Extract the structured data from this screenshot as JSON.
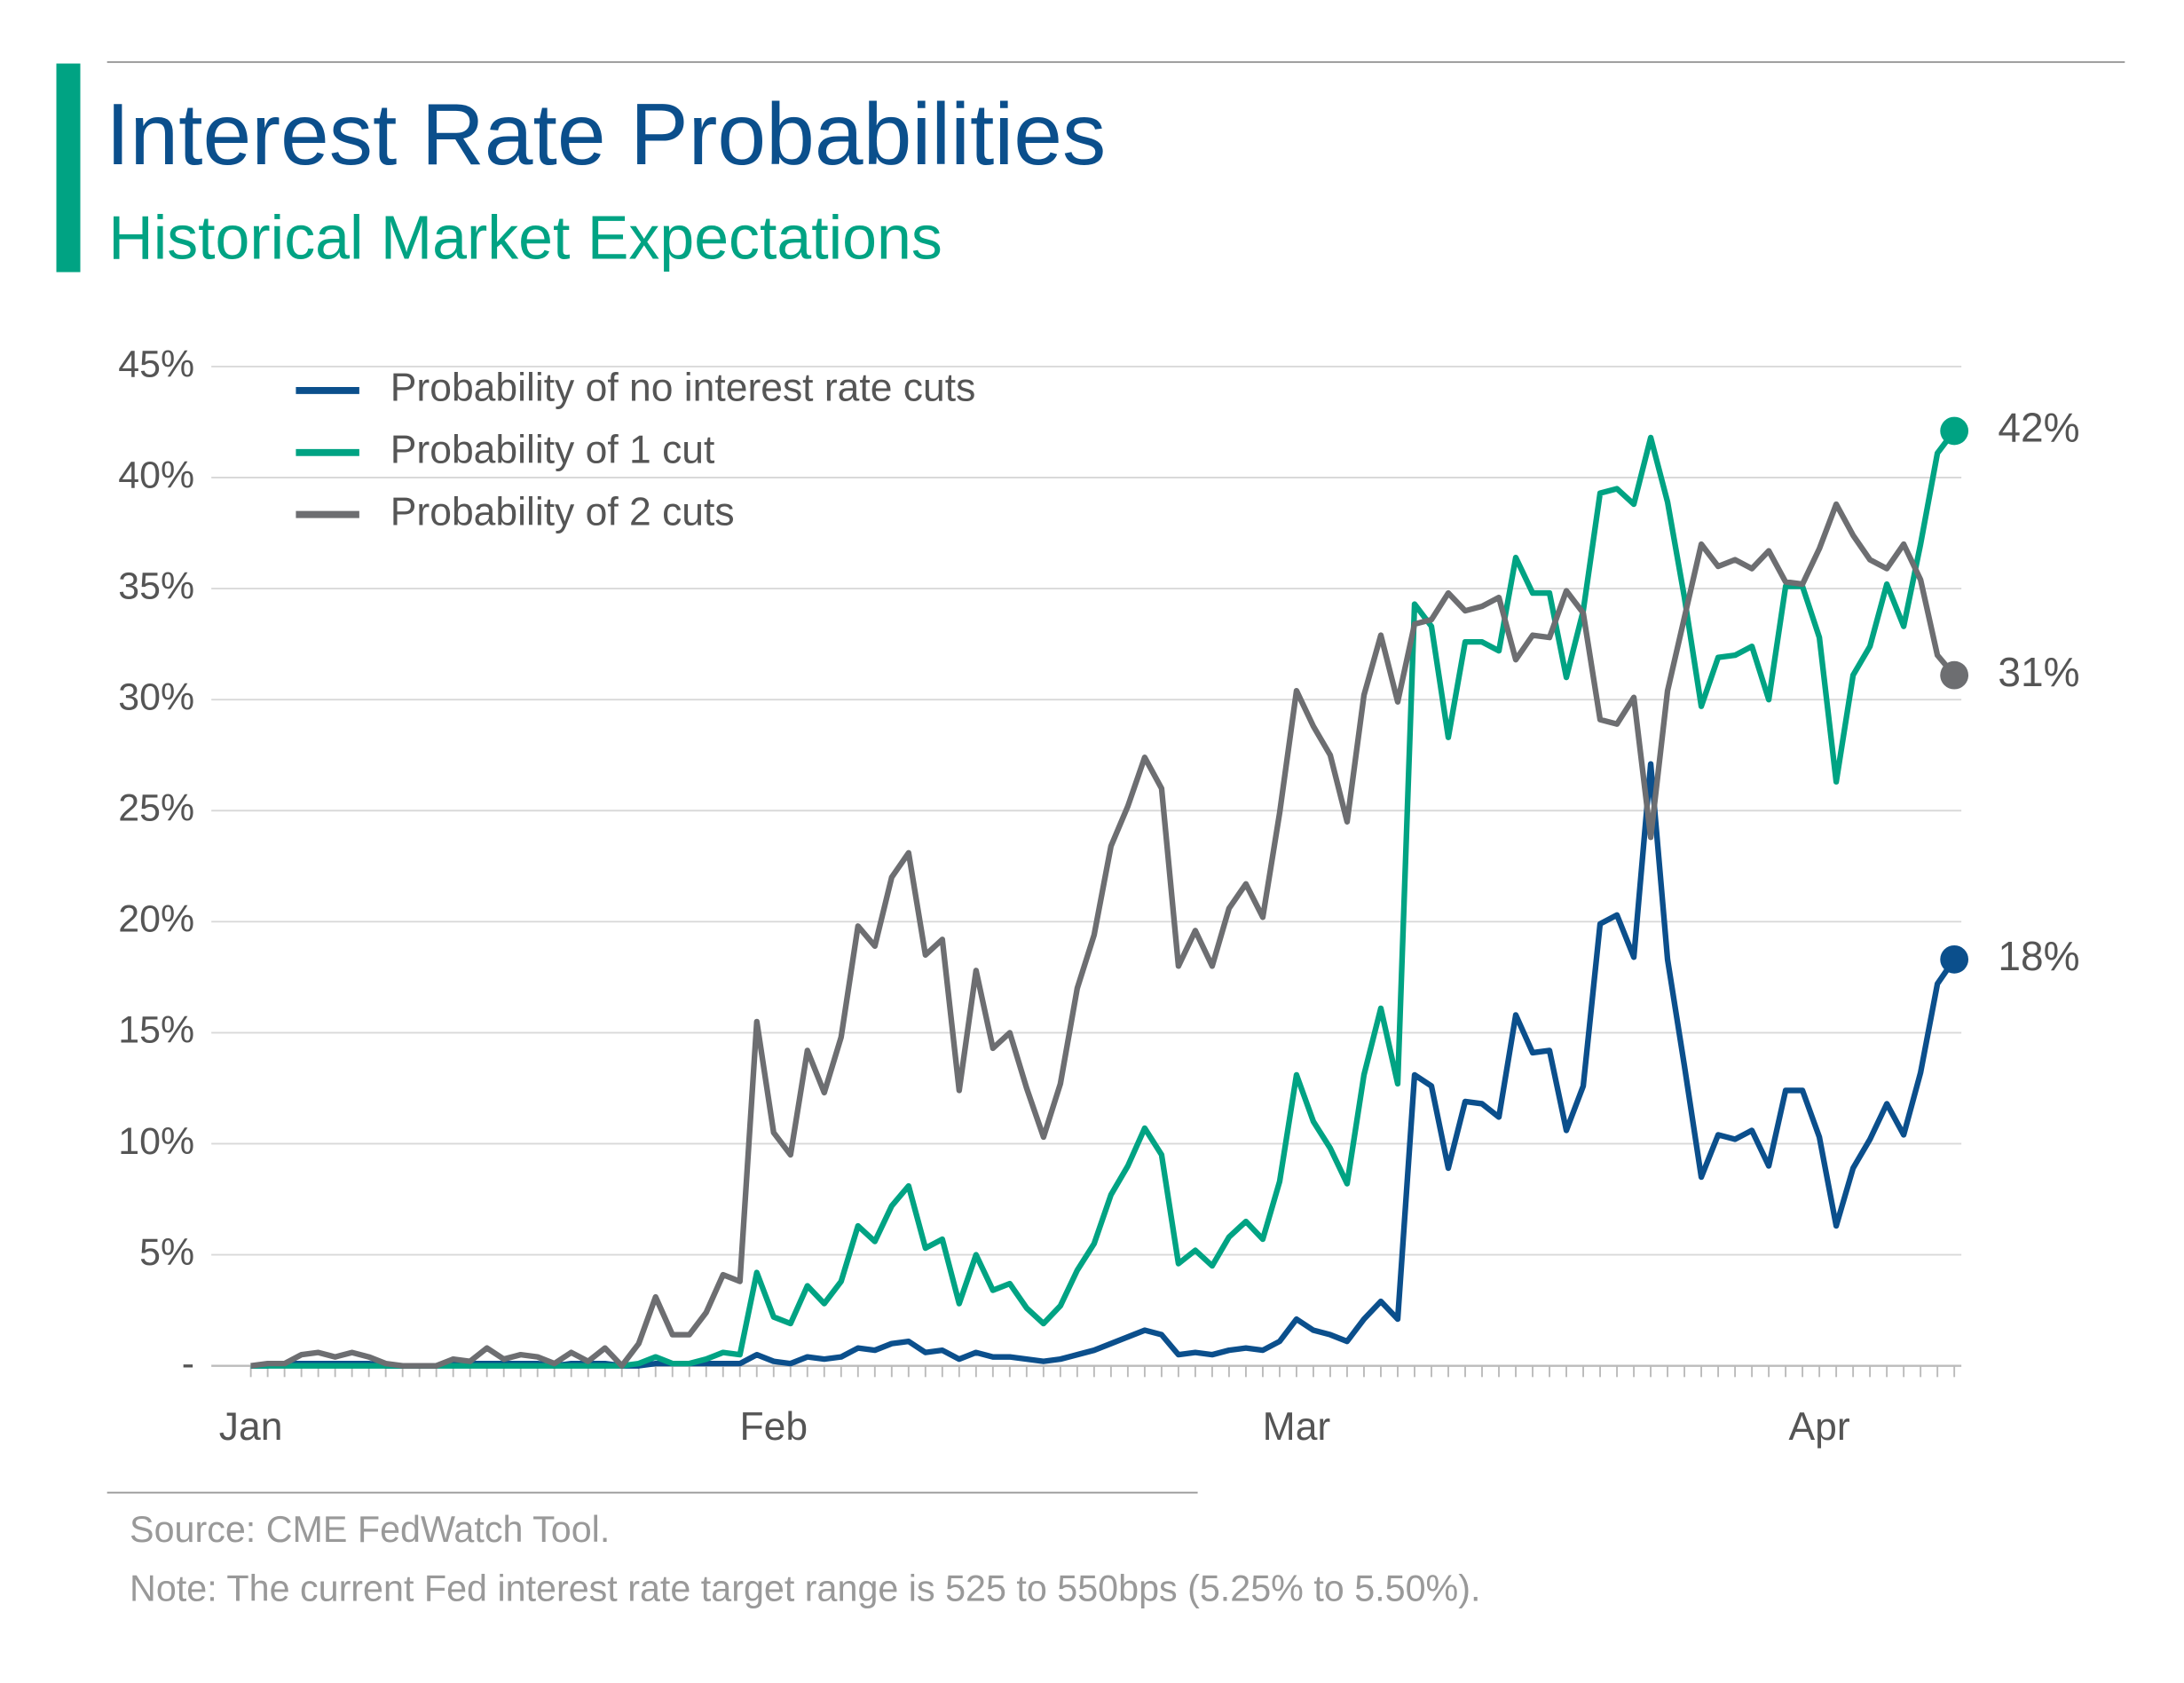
{
  "chart_data": {
    "type": "line",
    "title": "Interest Rate Probabilities",
    "subtitle": "Historical Market Expectations",
    "source": "Source: CME FedWatch Tool.",
    "note": "Note: The current Fed interest rate target range is 525 to 550bps (5.25% to 5.50%).",
    "legend": "upper left",
    "grid": true,
    "categories": [
      "Jan",
      null,
      null,
      null,
      null,
      null,
      null,
      null,
      null,
      null,
      null,
      null,
      null,
      null,
      null,
      null,
      null,
      null,
      null,
      null,
      null,
      null,
      null,
      null,
      null,
      null,
      null,
      null,
      null,
      null,
      null,
      "Feb",
      null,
      null,
      null,
      null,
      null,
      null,
      null,
      null,
      null,
      null,
      null,
      null,
      null,
      null,
      null,
      null,
      null,
      null,
      null,
      null,
      null,
      null,
      null,
      null,
      null,
      null,
      null,
      null,
      null,
      null,
      "Mar",
      null,
      null,
      null,
      null,
      null,
      null,
      null,
      null,
      null,
      null,
      null,
      null,
      null,
      null,
      null,
      null,
      null,
      null,
      null,
      null,
      null,
      null,
      null,
      null,
      null,
      null,
      null,
      null,
      null,
      null,
      "Apr",
      null,
      null,
      null,
      null,
      null,
      null,
      null,
      null
    ],
    "ylim": [
      0,
      45
    ],
    "yticks": [
      {
        "value": 0,
        "label": "-"
      },
      {
        "value": 5,
        "label": "5%"
      },
      {
        "value": 10,
        "label": "10%"
      },
      {
        "value": 15,
        "label": "15%"
      },
      {
        "value": 20,
        "label": "20%"
      },
      {
        "value": 25,
        "label": "25%"
      },
      {
        "value": 30,
        "label": "30%"
      },
      {
        "value": 35,
        "label": "35%"
      },
      {
        "value": 40,
        "label": "40%"
      },
      {
        "value": 45,
        "label": "45%"
      }
    ],
    "series": [
      {
        "name": "Probability of no interest rate cuts",
        "color": "#0b4f8c",
        "values": [
          0,
          0,
          0.1,
          0.1,
          0.1,
          0.1,
          0.1,
          0.1,
          0,
          0,
          0,
          0,
          0.1,
          0.1,
          0.1,
          0.1,
          0.1,
          0.1,
          0,
          0.1,
          0.1,
          0.1,
          0,
          0,
          0.1,
          0.1,
          0.1,
          0.1,
          0.1,
          0.1,
          0.5,
          0.2,
          0.1,
          0.4,
          0.3,
          0.4,
          0.8,
          0.7,
          1.0,
          1.1,
          0.6,
          0.7,
          0.3,
          0.6,
          0.4,
          0.4,
          0.3,
          0.2,
          0.3,
          0.5,
          0.7,
          1.0,
          1.3,
          1.6,
          1.4,
          0.5,
          0.6,
          0.5,
          0.7,
          0.8,
          0.7,
          1.1,
          2.1,
          1.6,
          1.4,
          1.1,
          2.1,
          2.9,
          2.1,
          13.1,
          12.6,
          8.9,
          11.9,
          11.8,
          11.2,
          15.8,
          14.1,
          14.2,
          10.6,
          12.6,
          19.9,
          20.3,
          18.4,
          27.1,
          18.3,
          13.5,
          8.5,
          10.4,
          10.2,
          10.6,
          9.0,
          12.4,
          12.4,
          10.3,
          6.3,
          8.9,
          10.2,
          11.8,
          10.4,
          13.2,
          17.2,
          18.3
        ],
        "value_labels": [
          null,
          null,
          null,
          null,
          null,
          null,
          null,
          null,
          null,
          null,
          null,
          null,
          null,
          null,
          null,
          null,
          null,
          null,
          null,
          null,
          null,
          null,
          null,
          null,
          null,
          null,
          null,
          null,
          null,
          null,
          null,
          null,
          null,
          null,
          null,
          null,
          null,
          null,
          null,
          null,
          null,
          null,
          null,
          null,
          null,
          null,
          null,
          null,
          null,
          null,
          null,
          null,
          null,
          null,
          null,
          null,
          null,
          null,
          null,
          null,
          null,
          null,
          null,
          null,
          null,
          null,
          null,
          null,
          null,
          null,
          null,
          null,
          null,
          null,
          null,
          null,
          null,
          null,
          null,
          null,
          null,
          null,
          null,
          null,
          null,
          null,
          null,
          null,
          null,
          null,
          null,
          null,
          null,
          null,
          null,
          null,
          null,
          null,
          null,
          null,
          null,
          "18%"
        ]
      },
      {
        "name": "Probability of 1 cut",
        "color": "#00a383",
        "values": [
          0,
          0,
          0,
          0,
          0,
          0,
          0,
          0,
          0,
          0,
          0,
          0,
          0,
          0,
          0,
          0,
          0,
          0,
          0,
          0,
          0,
          0,
          0,
          0.1,
          0.4,
          0.1,
          0.1,
          0.3,
          0.6,
          0.5,
          4.2,
          2.2,
          1.9,
          3.6,
          2.8,
          3.8,
          6.3,
          5.6,
          7.2,
          8.1,
          5.3,
          5.7,
          2.8,
          5.0,
          3.4,
          3.7,
          2.6,
          1.9,
          2.7,
          4.3,
          5.5,
          7.7,
          9.0,
          10.7,
          9.5,
          4.6,
          5.2,
          4.5,
          5.8,
          6.5,
          5.7,
          8.3,
          13.1,
          11.0,
          9.8,
          8.2,
          13.1,
          16.1,
          12.7,
          34.3,
          33.3,
          28.3,
          32.6,
          32.6,
          32.2,
          36.4,
          34.8,
          34.8,
          31.0,
          34.0,
          39.3,
          39.5,
          38.8,
          41.8,
          38.9,
          34.6,
          29.7,
          31.9,
          32.0,
          32.4,
          30.0,
          35.1,
          35.1,
          32.8,
          26.3,
          31.1,
          32.4,
          35.2,
          33.3,
          37.0,
          41.1,
          42.1
        ],
        "value_labels": [
          null,
          null,
          null,
          null,
          null,
          null,
          null,
          null,
          null,
          null,
          null,
          null,
          null,
          null,
          null,
          null,
          null,
          null,
          null,
          null,
          null,
          null,
          null,
          null,
          null,
          null,
          null,
          null,
          null,
          null,
          null,
          null,
          null,
          null,
          null,
          null,
          null,
          null,
          null,
          null,
          null,
          null,
          null,
          null,
          null,
          null,
          null,
          null,
          null,
          null,
          null,
          null,
          null,
          null,
          null,
          null,
          null,
          null,
          null,
          null,
          null,
          null,
          null,
          null,
          null,
          null,
          null,
          null,
          null,
          null,
          null,
          null,
          null,
          null,
          null,
          null,
          null,
          null,
          null,
          null,
          null,
          null,
          null,
          null,
          null,
          null,
          null,
          null,
          null,
          null,
          null,
          null,
          null,
          null,
          null,
          null,
          null,
          null,
          null,
          null,
          null,
          "42%"
        ]
      },
      {
        "name": "Probability of 2 cuts",
        "color": "#6d6e71",
        "values": [
          0,
          0.1,
          0.1,
          0.5,
          0.6,
          0.4,
          0.6,
          0.4,
          0.1,
          0,
          0,
          0,
          0.3,
          0.2,
          0.8,
          0.3,
          0.5,
          0.4,
          0.1,
          0.6,
          0.2,
          0.8,
          0,
          1.0,
          3.1,
          1.4,
          1.4,
          2.4,
          4.1,
          3.8,
          15.5,
          10.5,
          9.5,
          14.2,
          12.3,
          14.8,
          19.8,
          18.9,
          22.0,
          23.1,
          18.5,
          19.2,
          12.4,
          17.8,
          14.3,
          15.0,
          12.5,
          10.3,
          12.7,
          17.0,
          19.4,
          23.4,
          25.2,
          27.4,
          26.0,
          18.0,
          19.6,
          18.0,
          20.6,
          21.7,
          20.2,
          24.9,
          30.4,
          28.8,
          27.5,
          24.5,
          30.2,
          32.9,
          29.9,
          33.4,
          33.6,
          34.8,
          34.0,
          34.2,
          34.6,
          31.8,
          32.9,
          32.8,
          34.9,
          33.9,
          29.1,
          28.9,
          30.1,
          23.8,
          30.4,
          33.7,
          37.0,
          36.0,
          36.3,
          35.9,
          36.7,
          35.3,
          35.2,
          36.8,
          38.8,
          37.4,
          36.3,
          35.9,
          37.0,
          35.4,
          32.0,
          31.1
        ],
        "value_labels": [
          null,
          null,
          null,
          null,
          null,
          null,
          null,
          null,
          null,
          null,
          null,
          null,
          null,
          null,
          null,
          null,
          null,
          null,
          null,
          null,
          null,
          null,
          null,
          null,
          null,
          null,
          null,
          null,
          null,
          null,
          null,
          null,
          null,
          null,
          null,
          null,
          null,
          null,
          null,
          null,
          null,
          null,
          null,
          null,
          null,
          null,
          null,
          null,
          null,
          null,
          null,
          null,
          null,
          null,
          null,
          null,
          null,
          null,
          null,
          null,
          null,
          null,
          null,
          null,
          null,
          null,
          null,
          null,
          null,
          null,
          null,
          null,
          null,
          null,
          null,
          null,
          null,
          null,
          null,
          null,
          null,
          null,
          null,
          null,
          null,
          null,
          null,
          null,
          null,
          null,
          null,
          null,
          null,
          null,
          null,
          null,
          null,
          null,
          null,
          null,
          null,
          "31%"
        ]
      }
    ]
  }
}
